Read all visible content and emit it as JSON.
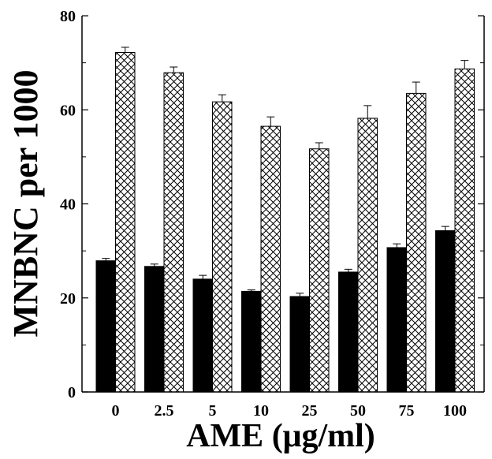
{
  "chart_data": {
    "type": "bar",
    "title": "",
    "xlabel": "AME (μg/ml)",
    "ylabel": "MNBNC per 1000",
    "categories": [
      "0",
      "2.5",
      "5",
      "10",
      "25",
      "50",
      "75",
      "100"
    ],
    "ylim": [
      0,
      80
    ],
    "y_ticks": [
      "0",
      "20",
      "40",
      "60",
      "80"
    ],
    "y_minor_ticks": [
      10,
      30,
      50,
      70
    ],
    "grid": false,
    "legend": "none",
    "series": [
      {
        "fill": "solid-black",
        "values": [
          27.9,
          26.7,
          24.0,
          21.4,
          20.3,
          25.5,
          30.7,
          34.3
        ],
        "errors": [
          0.5,
          0.5,
          0.8,
          0.3,
          0.7,
          0.6,
          0.8,
          0.9
        ]
      },
      {
        "fill": "crosshatch",
        "values": [
          72.2,
          67.9,
          61.7,
          56.5,
          51.7,
          58.2,
          63.5,
          68.7
        ],
        "errors": [
          1.1,
          1.2,
          1.5,
          2.0,
          1.3,
          2.7,
          2.4,
          1.8
        ]
      }
    ]
  },
  "colors": {
    "axis": "#000000",
    "solid_bar": "#000000",
    "hatch_line": "#000000",
    "background": "#ffffff"
  }
}
